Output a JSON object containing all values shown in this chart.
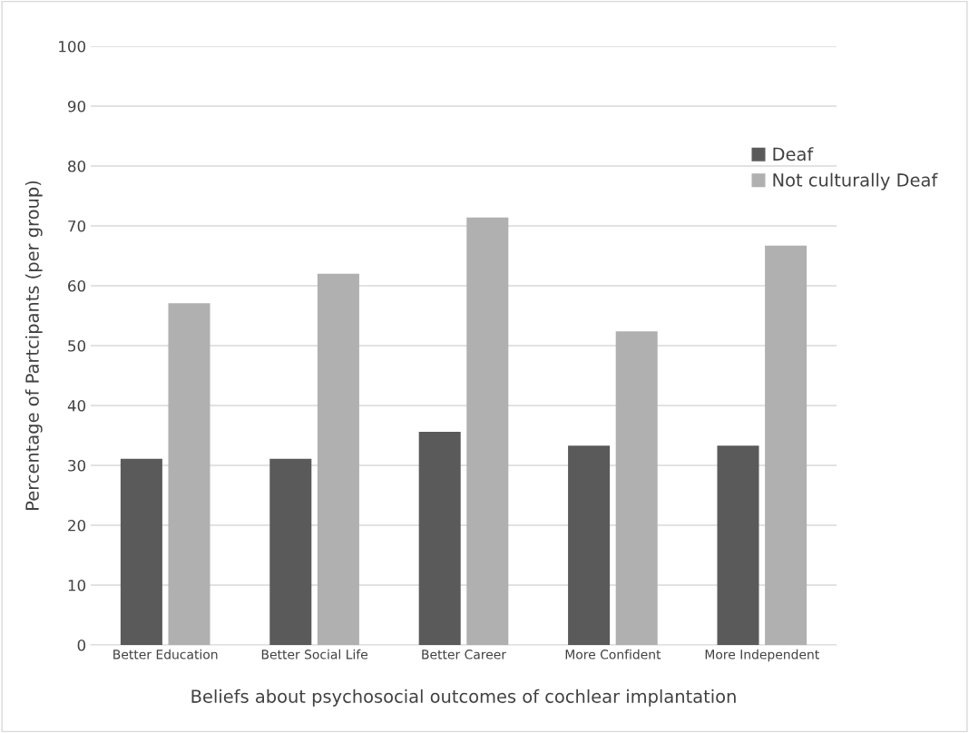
{
  "chart_data": {
    "type": "bar",
    "xlabel": "Beliefs about psychosocial outcomes of cochlear implantation",
    "ylabel": "Percentage of Partcipants (per group)",
    "categories": [
      "Better Education",
      "Better Social Life",
      "Better Career",
      "More Confident",
      "More Independent"
    ],
    "series": [
      {
        "name": "Deaf",
        "color": "#5a5a5a",
        "values": [
          31.1,
          31.1,
          35.6,
          33.3,
          33.3
        ]
      },
      {
        "name": "Not culturally Deaf",
        "color": "#b0b0b0",
        "values": [
          57.1,
          62.0,
          71.4,
          52.4,
          66.7
        ]
      }
    ],
    "ylim": [
      0,
      100
    ],
    "yticks": [
      0,
      10,
      20,
      30,
      40,
      50,
      60,
      70,
      80,
      90,
      100
    ],
    "grid": "y",
    "legend": "right"
  }
}
